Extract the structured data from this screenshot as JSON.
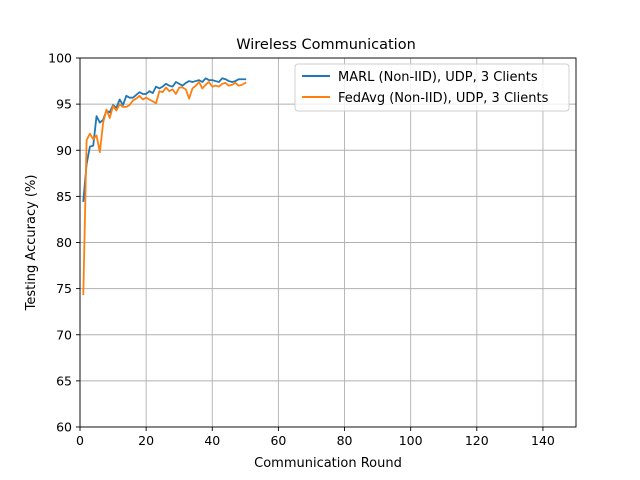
{
  "chart_data": {
    "type": "line",
    "title": "Wireless Communication",
    "xlabel": "Communication Round",
    "ylabel": "Testing Accuracy (%)",
    "xlim": [
      0,
      150
    ],
    "ylim": [
      60,
      100
    ],
    "xticks": [
      0,
      20,
      40,
      60,
      80,
      100,
      120,
      140
    ],
    "yticks": [
      60,
      65,
      70,
      75,
      80,
      85,
      90,
      95,
      100
    ],
    "grid": true,
    "legend_position": "top-right",
    "series": [
      {
        "name": "MARL (Non-IID), UDP, 3 Clients",
        "color": "#1f77b4",
        "x": [
          1,
          2,
          3,
          4,
          5,
          6,
          7,
          8,
          9,
          10,
          11,
          12,
          13,
          14,
          15,
          16,
          17,
          18,
          19,
          20,
          21,
          22,
          23,
          24,
          25,
          26,
          27,
          28,
          29,
          30,
          31,
          32,
          33,
          34,
          35,
          36,
          37,
          38,
          39,
          40,
          41,
          42,
          43,
          44,
          45,
          46,
          47,
          48,
          49,
          50
        ],
        "values": [
          84.5,
          88.5,
          90.4,
          90.5,
          93.7,
          93.0,
          93.3,
          94.3,
          94.1,
          94.9,
          94.6,
          95.5,
          94.9,
          95.9,
          95.7,
          95.7,
          96.0,
          96.3,
          96.1,
          96.1,
          96.4,
          96.2,
          96.9,
          96.7,
          96.9,
          97.2,
          97.0,
          96.9,
          97.4,
          97.2,
          97.0,
          97.3,
          97.5,
          97.4,
          97.5,
          97.6,
          97.4,
          97.8,
          97.6,
          97.6,
          97.5,
          97.4,
          97.8,
          97.7,
          97.5,
          97.4,
          97.5,
          97.7,
          97.7,
          97.7
        ]
      },
      {
        "name": "FedAvg (Non-IID), UDP, 3 Clients",
        "color": "#ff7f0e",
        "x": [
          1,
          2,
          3,
          4,
          5,
          6,
          7,
          8,
          9,
          10,
          11,
          12,
          13,
          14,
          15,
          16,
          17,
          18,
          19,
          20,
          21,
          22,
          23,
          24,
          25,
          26,
          27,
          28,
          29,
          30,
          31,
          32,
          33,
          34,
          35,
          36,
          37,
          38,
          39,
          40,
          41,
          42,
          43,
          44,
          45,
          46,
          47,
          48,
          49,
          50
        ],
        "values": [
          74.4,
          91.1,
          91.8,
          91.2,
          91.6,
          89.8,
          93.0,
          94.4,
          93.5,
          94.8,
          94.3,
          95.0,
          94.7,
          94.7,
          94.9,
          95.4,
          95.6,
          95.9,
          95.5,
          95.7,
          95.5,
          95.3,
          95.1,
          96.4,
          96.3,
          96.8,
          96.4,
          96.6,
          96.1,
          96.8,
          96.8,
          96.6,
          95.6,
          96.7,
          97.0,
          97.4,
          96.7,
          97.1,
          97.4,
          96.9,
          97.0,
          96.9,
          97.2,
          97.3,
          97.0,
          97.1,
          97.3,
          97.0,
          97.1,
          97.3
        ]
      }
    ]
  }
}
